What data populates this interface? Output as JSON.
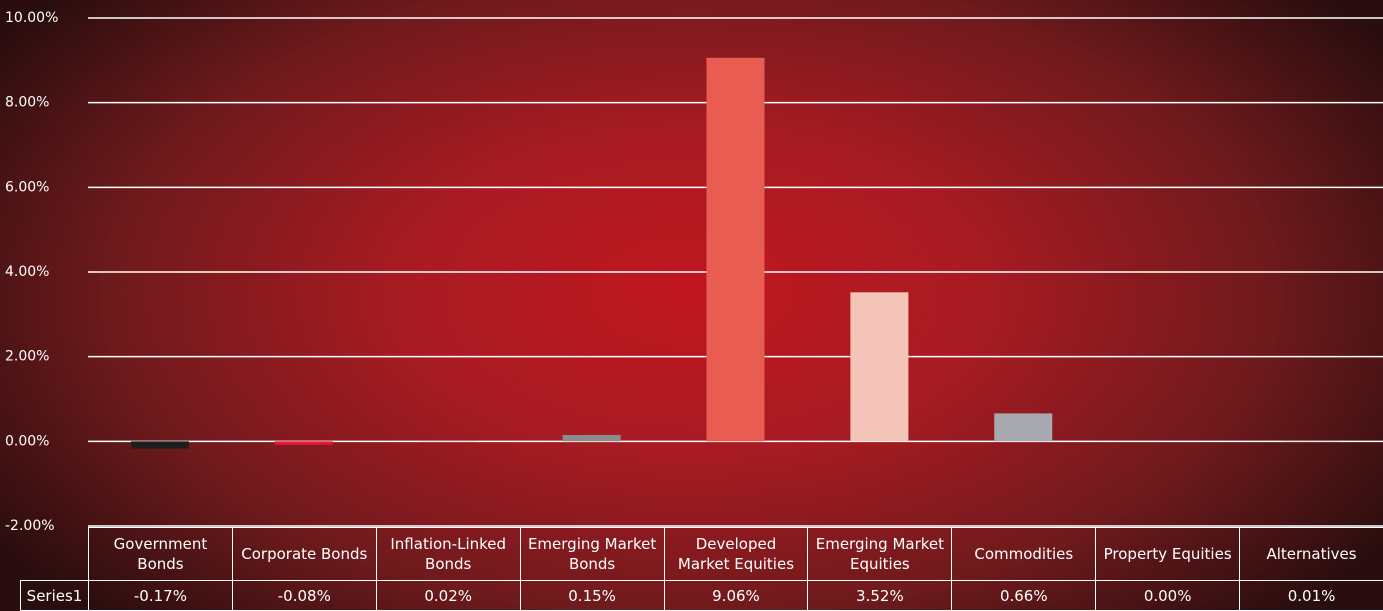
{
  "chart_data": {
    "type": "bar",
    "categories": [
      "Government Bonds",
      "Corporate Bonds",
      "Inflation-Linked Bonds",
      "Emerging Market Bonds",
      "Developed Market Equities",
      "Emerging Market Equities",
      "Commodities",
      "Property Equities",
      "Alternatives"
    ],
    "series": [
      {
        "name": "Series1",
        "values": [
          -0.17,
          -0.08,
          0.02,
          0.15,
          9.06,
          3.52,
          0.66,
          0.0,
          0.01
        ],
        "value_labels": [
          "-0.17%",
          "-0.08%",
          "0.02%",
          "0.15%",
          "9.06%",
          "3.52%",
          "0.66%",
          "0.00%",
          "0.01%"
        ],
        "colors": [
          "#1e1e1e",
          "#e8173a",
          "#c8c8c8",
          "#8c8c8c",
          "#e85c52",
          "#f5c4b8",
          "#a8a8b0",
          "#c8c8c8",
          "#c8c8c8"
        ]
      }
    ],
    "ylim": [
      -2,
      10
    ],
    "yticks": [
      {
        "value": -2,
        "label": "-2.00%"
      },
      {
        "value": 0,
        "label": "0.00%"
      },
      {
        "value": 2,
        "label": "2.00%"
      },
      {
        "value": 4,
        "label": "4.00%"
      },
      {
        "value": 6,
        "label": "6.00%"
      },
      {
        "value": 8,
        "label": "8.00%"
      },
      {
        "value": 10,
        "label": "10.00%"
      }
    ],
    "grid": true
  }
}
